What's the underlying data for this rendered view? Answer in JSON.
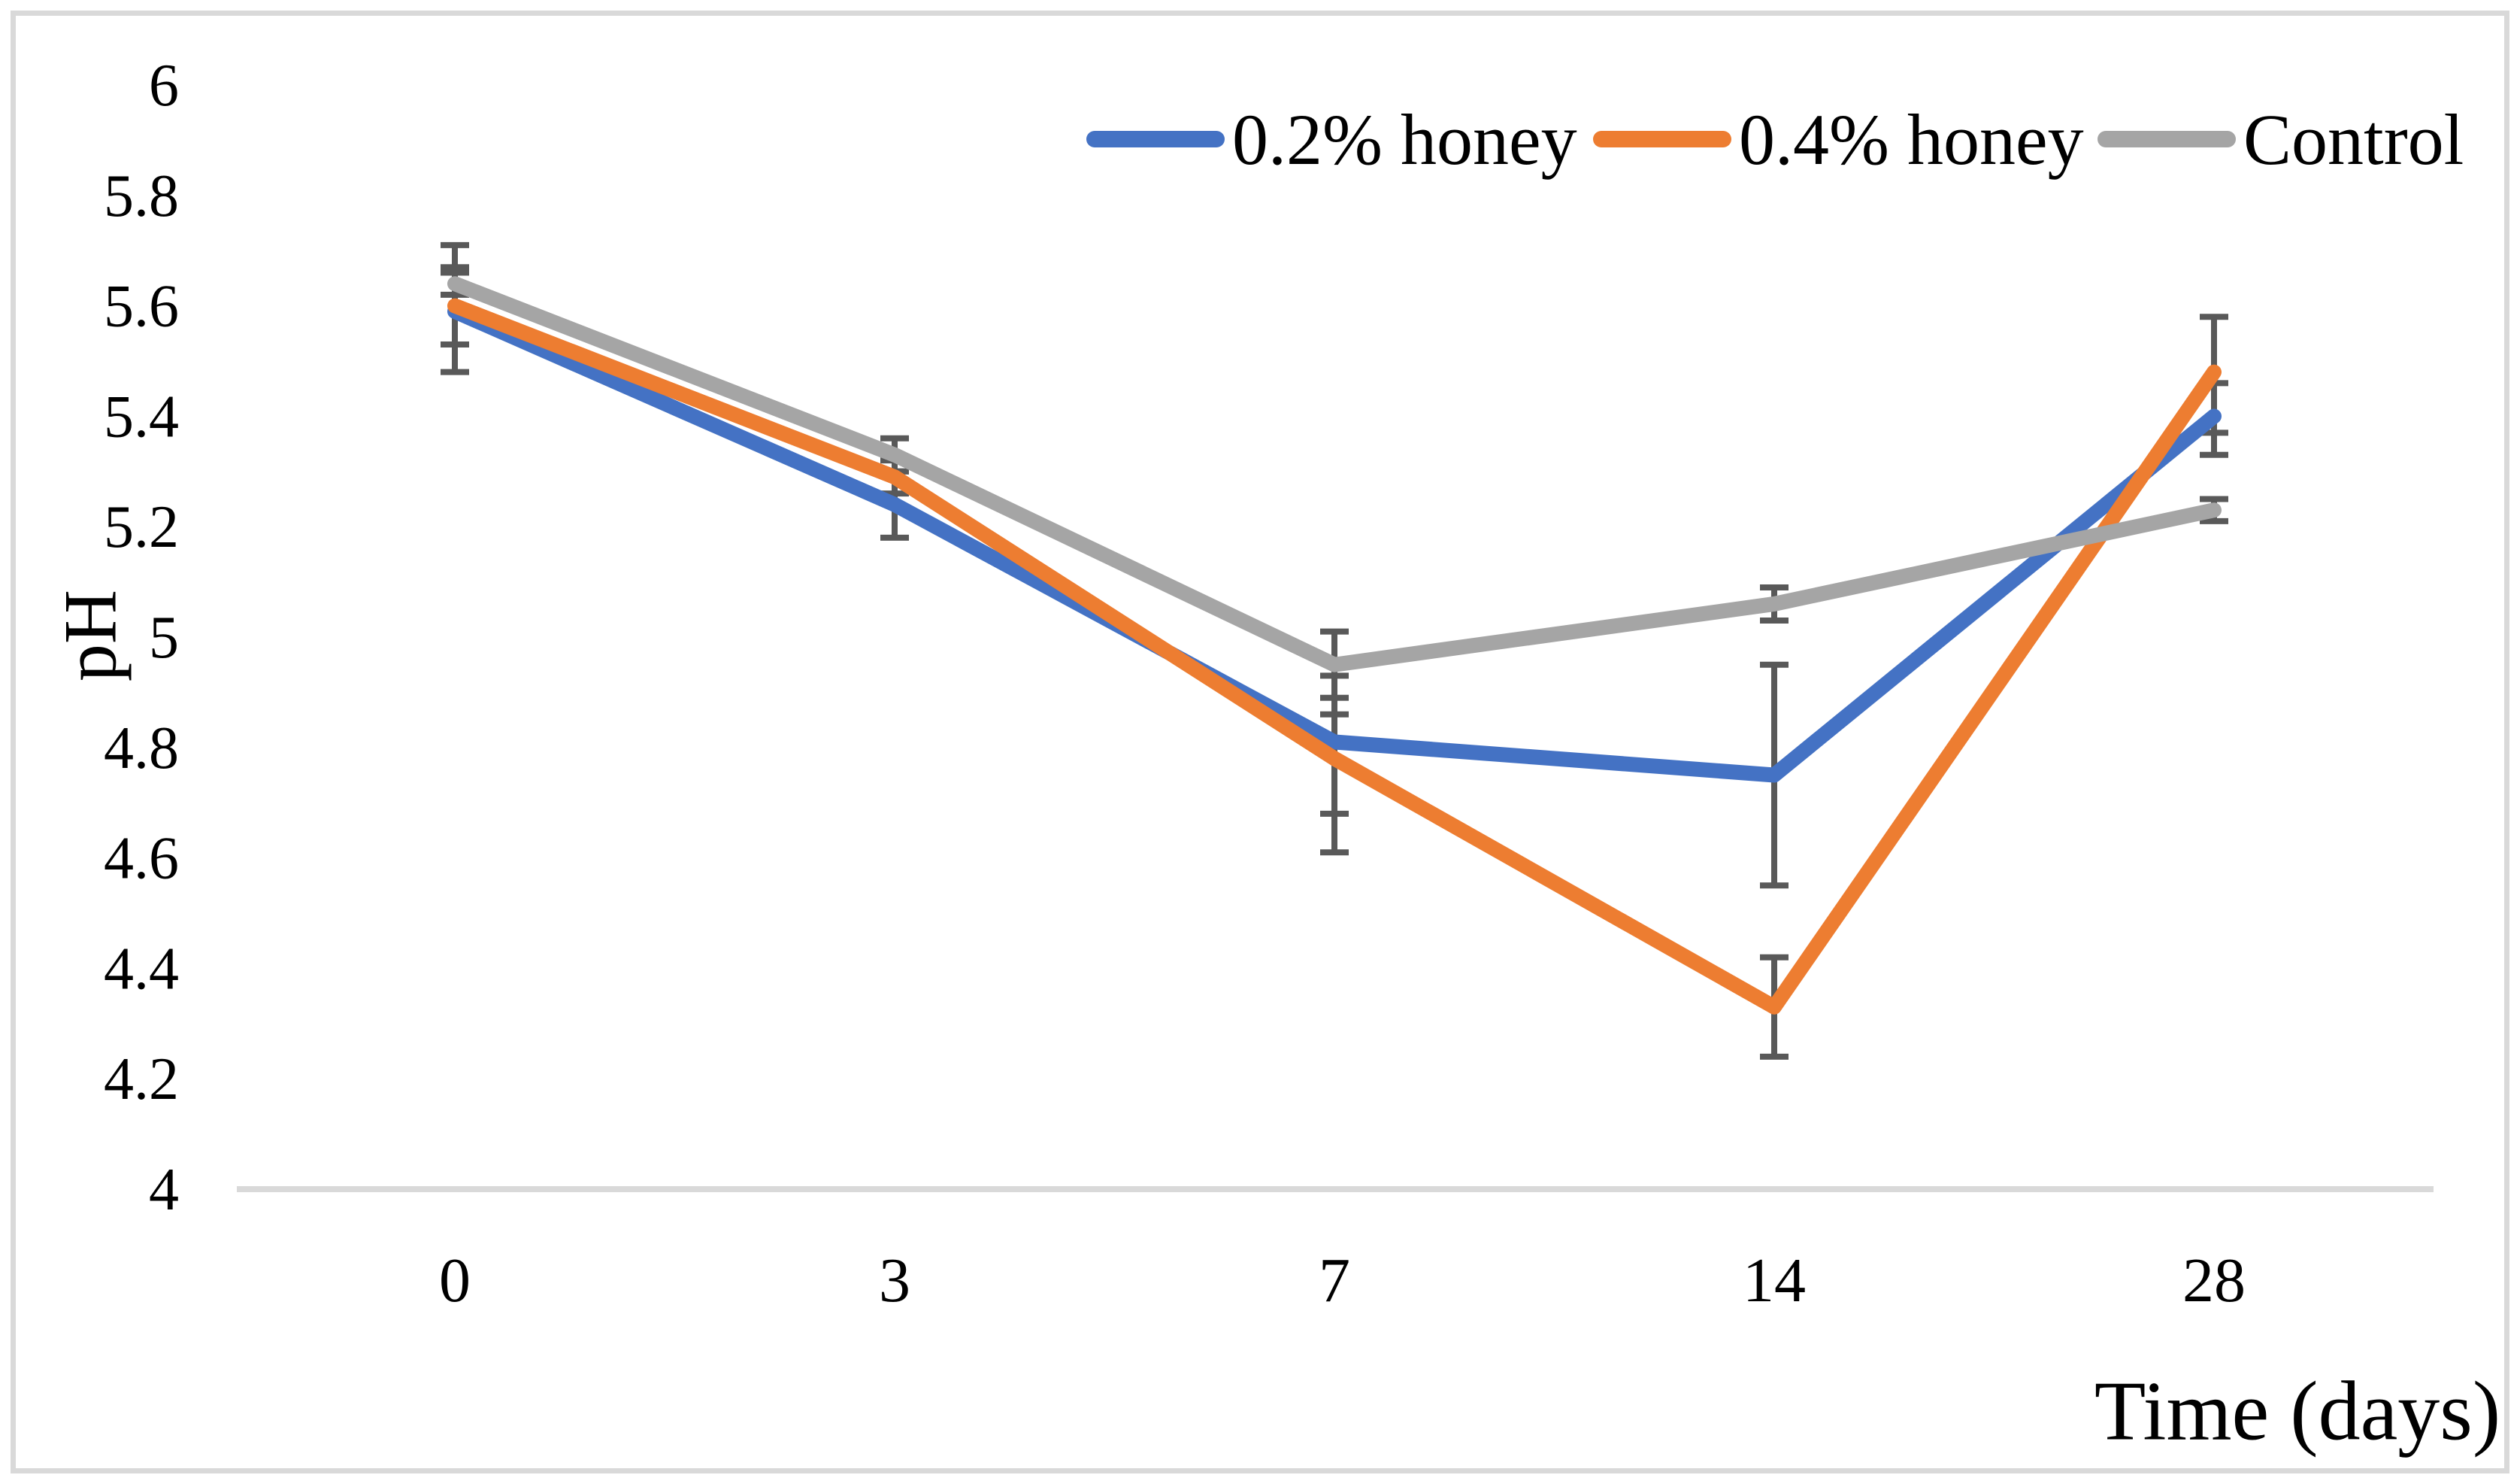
{
  "figure": {
    "background": "#FFFFFF",
    "border_color": "#D9D9D9"
  },
  "chart_data": {
    "type": "line",
    "title": "",
    "xlabel": "Time (days)",
    "ylabel": "pH",
    "categories": [
      "0",
      "3",
      "7",
      "14",
      "28"
    ],
    "x_values_days": [
      0,
      3,
      7,
      14,
      28
    ],
    "ylim": [
      4,
      6
    ],
    "ytick_labels": [
      "6",
      "5.8",
      "5.6",
      "5.4",
      "5.2",
      "5",
      "4.8",
      "4.6",
      "4.4",
      "4.2",
      "4"
    ],
    "grid": "off",
    "legend_position": "top-right-inline",
    "axis_line_color": "#D9D9D9",
    "error_bar_color": "#595959",
    "series": [
      {
        "name": "0.2% honey",
        "color": "#4472C4",
        "values": [
          5.59,
          5.24,
          4.81,
          4.75,
          5.4
        ],
        "err_lo": [
          5.48,
          5.18,
          4.68,
          4.55,
          5.33
        ],
        "err_hi": [
          5.71,
          5.3,
          4.86,
          4.95,
          5.46
        ]
      },
      {
        "name": "0.4% honey",
        "color": "#ED7D31",
        "values": [
          5.6,
          5.29,
          4.78,
          4.33,
          5.48
        ],
        "err_lo": [
          5.53,
          5.26,
          4.61,
          4.24,
          5.37
        ],
        "err_hi": [
          5.67,
          5.32,
          4.93,
          4.42,
          5.58
        ]
      },
      {
        "name": "Control",
        "color": "#A5A5A5",
        "values": [
          5.64,
          5.33,
          4.95,
          5.06,
          5.23
        ],
        "err_lo": [
          5.62,
          5.3,
          4.89,
          5.03,
          5.21
        ],
        "err_hi": [
          5.66,
          5.36,
          5.01,
          5.09,
          5.25
        ]
      }
    ]
  }
}
